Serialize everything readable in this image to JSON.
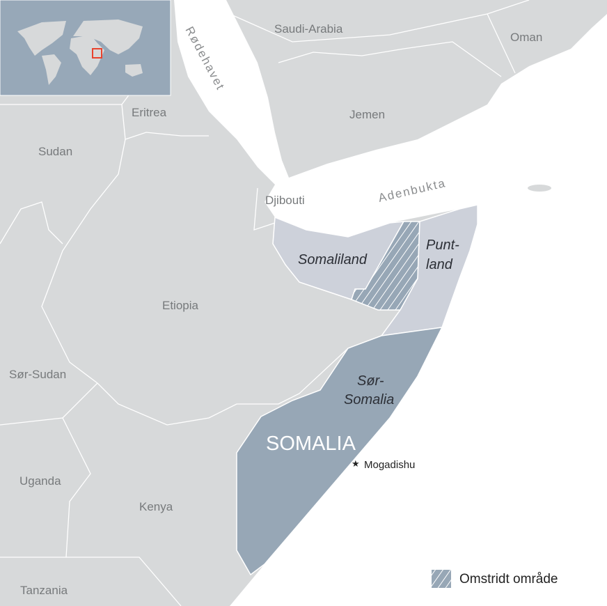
{
  "map": {
    "colors": {
      "land": "#d7d9da",
      "sea": "#ffffff",
      "regions": "#cdd1da",
      "somalia_south": "#97a7b6",
      "inset": "#97a8b8",
      "marker": "#e8432e"
    },
    "seas": {
      "red_sea": "Rødehavet",
      "gulf": "Adenbukta"
    },
    "countries": {
      "saudi": "Saudi-Arabia",
      "oman": "Oman",
      "yemen": "Jemen",
      "eritrea": "Eritrea",
      "sudan": "Sudan",
      "djibouti": "Djibouti",
      "ethiopia": "Etiopia",
      "south_sudan": "Sør-Sudan",
      "uganda": "Uganda",
      "kenya": "Kenya",
      "tanzania": "Tanzania",
      "somalia": "SOMALIA"
    },
    "regions": {
      "somaliland": "Somaliland",
      "puntland_1": "Punt-",
      "puntland_2": "land",
      "south_1": "Sør-",
      "south_2": "Somalia"
    },
    "capital": {
      "name": "Mogadishu",
      "icon": "star-icon"
    },
    "legend": {
      "disputed": "Omstridt område"
    }
  }
}
